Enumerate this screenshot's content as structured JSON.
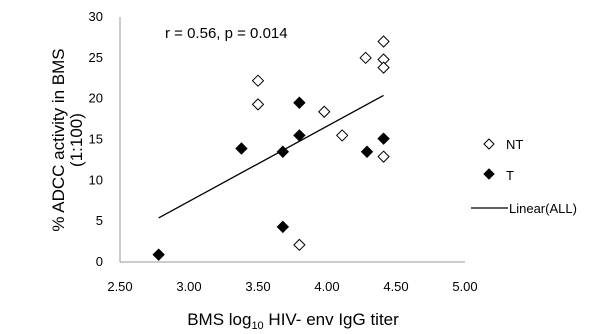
{
  "chart_data": {
    "type": "scatter",
    "xlabel_prefix": "BMS log",
    "xlabel_sub": "10",
    "xlabel_suffix": " HIV- env IgG titer",
    "ylabel_line1": "% ADCC activity in BMS",
    "ylabel_line2": "(1:100)",
    "annotation": "r = 0.56, p = 0.014",
    "xlim": [
      2.5,
      5.0
    ],
    "ylim": [
      0,
      30
    ],
    "x_ticks": [
      "2.50",
      "3.00",
      "3.50",
      "4.00",
      "4.50",
      "5.00"
    ],
    "y_ticks": [
      "0",
      "5",
      "10",
      "15",
      "20",
      "25",
      "30"
    ],
    "grid": false,
    "legend_position": "right",
    "series": [
      {
        "name": "NT",
        "marker": "open-diamond",
        "color": "#000000",
        "points": [
          {
            "x": 3.5,
            "y": 22.2
          },
          {
            "x": 3.5,
            "y": 19.3
          },
          {
            "x": 3.8,
            "y": 2.1
          },
          {
            "x": 3.98,
            "y": 18.4
          },
          {
            "x": 4.11,
            "y": 15.5
          },
          {
            "x": 4.28,
            "y": 25.0
          },
          {
            "x": 4.41,
            "y": 27.0
          },
          {
            "x": 4.41,
            "y": 24.8
          },
          {
            "x": 4.41,
            "y": 23.8
          },
          {
            "x": 4.41,
            "y": 12.9
          }
        ]
      },
      {
        "name": "T",
        "marker": "filled-diamond",
        "color": "#000000",
        "points": [
          {
            "x": 2.78,
            "y": 0.9
          },
          {
            "x": 3.38,
            "y": 13.9
          },
          {
            "x": 3.68,
            "y": 13.5
          },
          {
            "x": 3.68,
            "y": 4.3
          },
          {
            "x": 3.8,
            "y": 19.5
          },
          {
            "x": 3.8,
            "y": 15.5
          },
          {
            "x": 4.29,
            "y": 13.5
          },
          {
            "x": 4.41,
            "y": 15.1
          }
        ]
      }
    ],
    "trendline": {
      "name": "Linear(ALL)",
      "x_start": 2.78,
      "y_start": 5.4,
      "x_end": 4.41,
      "y_end": 20.4
    }
  }
}
